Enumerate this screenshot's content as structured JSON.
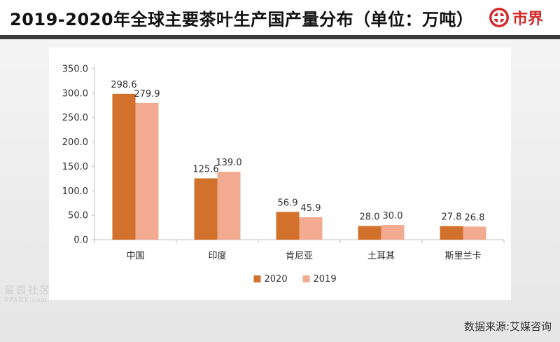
{
  "header": {
    "title": "2019-2020年全球主要茶叶生产国产量分布（单位：万吨）",
    "brand_name": "市界"
  },
  "watermark": {
    "cn": "留园社区",
    "en": "6PARK.com"
  },
  "source": "数据来源:艾媒咨询",
  "colors": {
    "series_2020": "#d2712b",
    "series_2019": "#f2ab90",
    "brand_red": "#d42a2a",
    "header_rule": "#3d3d3d"
  },
  "chart_data": {
    "type": "bar",
    "title": "2019-2020年全球主要茶叶生产国产量分布（单位：万吨）",
    "xlabel": "",
    "ylabel": "",
    "categories": [
      "中国",
      "印度",
      "肯尼亚",
      "土耳其",
      "斯里兰卡"
    ],
    "series": [
      {
        "name": "2020",
        "values": [
          298.6,
          125.6,
          56.9,
          28.0,
          27.8
        ]
      },
      {
        "name": "2019",
        "values": [
          279.9,
          139.0,
          45.9,
          30.0,
          26.8
        ]
      }
    ],
    "ylim": [
      0,
      350
    ],
    "yticks": [
      0,
      50,
      100,
      150,
      200,
      250,
      300,
      350
    ],
    "tick_decimals": 1,
    "grid": false,
    "legend_position": "bottom-center"
  }
}
